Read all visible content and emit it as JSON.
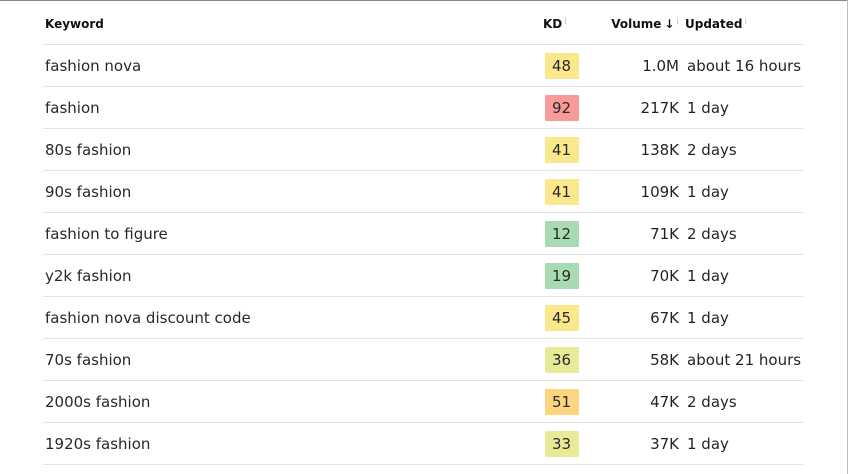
{
  "table": {
    "headers": {
      "keyword": "Keyword",
      "kd": "KD",
      "volume": "Volume",
      "updated": "Updated",
      "info_glyph": "i",
      "sort_glyph": "↓"
    },
    "rows": [
      {
        "keyword": "fashion nova",
        "kd": "48",
        "kd_color": "#fbe88d",
        "volume": "1.0M",
        "updated": "about 16 hours"
      },
      {
        "keyword": "fashion",
        "kd": "92",
        "kd_color": "#f79a9a",
        "volume": "217K",
        "updated": "1 day"
      },
      {
        "keyword": "80s fashion",
        "kd": "41",
        "kd_color": "#fbe88d",
        "volume": "138K",
        "updated": "2 days"
      },
      {
        "keyword": "90s fashion",
        "kd": "41",
        "kd_color": "#fbe88d",
        "volume": "109K",
        "updated": "1 day"
      },
      {
        "keyword": "fashion to figure",
        "kd": "12",
        "kd_color": "#a9dbb3",
        "volume": "71K",
        "updated": "2 days"
      },
      {
        "keyword": "y2k fashion",
        "kd": "19",
        "kd_color": "#a9dbb3",
        "volume": "70K",
        "updated": "1 day"
      },
      {
        "keyword": "fashion nova discount code",
        "kd": "45",
        "kd_color": "#fbe88d",
        "volume": "67K",
        "updated": "1 day"
      },
      {
        "keyword": "70s fashion",
        "kd": "36",
        "kd_color": "#e9ea98",
        "volume": "58K",
        "updated": "about 21 hours"
      },
      {
        "keyword": "2000s fashion",
        "kd": "51",
        "kd_color": "#fdd47f",
        "volume": "47K",
        "updated": "2 days"
      },
      {
        "keyword": "1920s fashion",
        "kd": "33",
        "kd_color": "#e9ea98",
        "volume": "37K",
        "updated": "1 day"
      }
    ]
  }
}
